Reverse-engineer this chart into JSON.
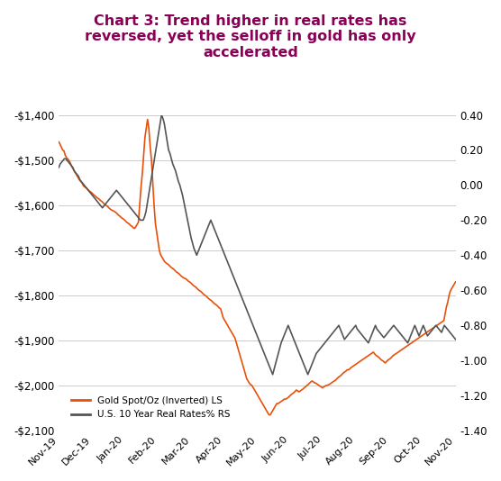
{
  "title": "Chart 3: Trend higher in real rates has\nreversed, yet the selloff in gold has only\naccelerated",
  "title_color": "#8B0057",
  "title_fontsize": 11.5,
  "gold_color": "#E8500A",
  "rates_color": "#555555",
  "background_color": "#ffffff",
  "grid_color": "#cccccc",
  "left_ylim": [
    -2100,
    -1400
  ],
  "left_yticks": [
    -2100,
    -2000,
    -1900,
    -1800,
    -1700,
    -1600,
    -1500,
    -1400
  ],
  "left_yticklabels": [
    "-$2,100",
    "-$2,000",
    "-$1,900",
    "-$1,800",
    "-$1,700",
    "-$1,600",
    "-$1,500",
    "-$1,400"
  ],
  "right_ylim": [
    -1.4,
    0.4
  ],
  "right_yticks": [
    -1.4,
    -1.2,
    -1.0,
    -0.8,
    -0.6,
    -0.4,
    -0.2,
    0.0,
    0.2,
    0.4
  ],
  "right_yticklabels": [
    "-1.40",
    "-1.20",
    "-1.00",
    "-0.80",
    "-0.60",
    "-0.40",
    "-0.20",
    "0.00",
    "0.20",
    "0.40"
  ],
  "xtick_labels": [
    "Nov-19",
    "Dec-19",
    "Jan-20",
    "Feb-20",
    "Mar-20",
    "Apr-20",
    "May-20",
    "Jun-20",
    "Jul-20",
    "Aug-20",
    "Sep-20",
    "Oct-20",
    "Nov-20"
  ],
  "legend_gold": "Gold Spot/Oz (Inverted) LS",
  "legend_rates": "U.S. 10 Year Real Rates% RS",
  "gold_data": [
    -1460,
    -1465,
    -1472,
    -1478,
    -1480,
    -1490,
    -1495,
    -1498,
    -1502,
    -1508,
    -1515,
    -1520,
    -1525,
    -1530,
    -1535,
    -1540,
    -1545,
    -1548,
    -1552,
    -1558,
    -1560,
    -1562,
    -1565,
    -1568,
    -1570,
    -1572,
    -1575,
    -1578,
    -1580,
    -1583,
    -1585,
    -1587,
    -1590,
    -1592,
    -1595,
    -1598,
    -1600,
    -1602,
    -1605,
    -1608,
    -1610,
    -1612,
    -1613,
    -1615,
    -1617,
    -1620,
    -1623,
    -1625,
    -1628,
    -1630,
    -1632,
    -1635,
    -1638,
    -1640,
    -1642,
    -1645,
    -1647,
    -1650,
    -1652,
    -1648,
    -1643,
    -1638,
    -1600,
    -1560,
    -1530,
    -1490,
    -1450,
    -1430,
    -1410,
    -1430,
    -1470,
    -1500,
    -1550,
    -1600,
    -1640,
    -1660,
    -1680,
    -1700,
    -1710,
    -1715,
    -1720,
    -1725,
    -1728,
    -1730,
    -1732,
    -1735,
    -1738,
    -1740,
    -1742,
    -1745,
    -1748,
    -1750,
    -1752,
    -1755,
    -1758,
    -1760,
    -1762,
    -1763,
    -1765,
    -1768,
    -1770,
    -1772,
    -1775,
    -1778,
    -1780,
    -1782,
    -1785,
    -1788,
    -1790,
    -1792,
    -1795,
    -1798,
    -1800,
    -1802,
    -1805,
    -1808,
    -1810,
    -1812,
    -1815,
    -1818,
    -1820,
    -1822,
    -1825,
    -1828,
    -1830,
    -1840,
    -1850,
    -1855,
    -1860,
    -1865,
    -1870,
    -1875,
    -1880,
    -1885,
    -1890,
    -1895,
    -1905,
    -1915,
    -1925,
    -1935,
    -1945,
    -1955,
    -1965,
    -1975,
    -1985,
    -1990,
    -1995,
    -1998,
    -2000,
    -2005,
    -2010,
    -2015,
    -2020,
    -2025,
    -2030,
    -2035,
    -2040,
    -2045,
    -2050,
    -2055,
    -2060,
    -2065,
    -2065,
    -2060,
    -2055,
    -2050,
    -2045,
    -2040,
    -2040,
    -2038,
    -2036,
    -2034,
    -2032,
    -2030,
    -2030,
    -2028,
    -2026,
    -2023,
    -2020,
    -2018,
    -2016,
    -2013,
    -2010,
    -2012,
    -2014,
    -2012,
    -2010,
    -2008,
    -2005,
    -2003,
    -2000,
    -1998,
    -1995,
    -1992,
    -1990,
    -1992,
    -1994,
    -1995,
    -1997,
    -1999,
    -2001,
    -2003,
    -2005,
    -2003,
    -2001,
    -2000,
    -1999,
    -1998,
    -1996,
    -1994,
    -1992,
    -1990,
    -1988,
    -1985,
    -1982,
    -1980,
    -1978,
    -1975,
    -1972,
    -1970,
    -1968,
    -1965,
    -1965,
    -1963,
    -1960,
    -1958,
    -1956,
    -1954,
    -1952,
    -1950,
    -1948,
    -1946,
    -1944,
    -1942,
    -1940,
    -1938,
    -1936,
    -1934,
    -1932,
    -1930,
    -1928,
    -1926,
    -1930,
    -1933,
    -1935,
    -1937,
    -1940,
    -1943,
    -1945,
    -1947,
    -1950,
    -1947,
    -1944,
    -1942,
    -1940,
    -1937,
    -1934,
    -1932,
    -1930,
    -1928,
    -1926,
    -1924,
    -1922,
    -1920,
    -1918,
    -1916,
    -1914,
    -1912,
    -1910,
    -1908,
    -1906,
    -1904,
    -1902,
    -1900,
    -1898,
    -1896,
    -1894,
    -1892,
    -1890,
    -1888,
    -1886,
    -1884,
    -1882,
    -1880,
    -1878,
    -1876,
    -1874,
    -1872,
    -1870,
    -1868,
    -1866,
    -1864,
    -1862,
    -1860,
    -1858,
    -1856,
    -1840,
    -1825,
    -1815,
    -1800,
    -1790,
    -1785,
    -1780,
    -1775,
    -1770
  ],
  "rates_data": [
    0.1,
    0.12,
    0.13,
    0.14,
    0.15,
    0.15,
    0.14,
    0.13,
    0.12,
    0.11,
    0.1,
    0.08,
    0.07,
    0.06,
    0.05,
    0.03,
    0.02,
    0.01,
    0.0,
    -0.01,
    -0.02,
    -0.03,
    -0.04,
    -0.05,
    -0.06,
    -0.07,
    -0.08,
    -0.09,
    -0.1,
    -0.11,
    -0.12,
    -0.13,
    -0.12,
    -0.11,
    -0.1,
    -0.09,
    -0.08,
    -0.07,
    -0.06,
    -0.05,
    -0.04,
    -0.03,
    -0.04,
    -0.05,
    -0.06,
    -0.07,
    -0.08,
    -0.09,
    -0.1,
    -0.11,
    -0.12,
    -0.13,
    -0.14,
    -0.15,
    -0.16,
    -0.17,
    -0.18,
    -0.19,
    -0.2,
    -0.2,
    -0.2,
    -0.18,
    -0.15,
    -0.1,
    -0.05,
    0.0,
    0.05,
    0.1,
    0.15,
    0.2,
    0.25,
    0.3,
    0.35,
    0.4,
    0.38,
    0.35,
    0.3,
    0.25,
    0.2,
    0.18,
    0.15,
    0.12,
    0.1,
    0.08,
    0.05,
    0.02,
    0.0,
    -0.03,
    -0.06,
    -0.1,
    -0.14,
    -0.18,
    -0.22,
    -0.26,
    -0.3,
    -0.33,
    -0.36,
    -0.38,
    -0.4,
    -0.38,
    -0.36,
    -0.34,
    -0.32,
    -0.3,
    -0.28,
    -0.26,
    -0.24,
    -0.22,
    -0.2,
    -0.22,
    -0.24,
    -0.26,
    -0.28,
    -0.3,
    -0.32,
    -0.34,
    -0.36,
    -0.38,
    -0.4,
    -0.42,
    -0.44,
    -0.46,
    -0.48,
    -0.5,
    -0.52,
    -0.54,
    -0.56,
    -0.58,
    -0.6,
    -0.62,
    -0.64,
    -0.66,
    -0.68,
    -0.7,
    -0.72,
    -0.74,
    -0.76,
    -0.78,
    -0.8,
    -0.82,
    -0.84,
    -0.86,
    -0.88,
    -0.9,
    -0.92,
    -0.94,
    -0.96,
    -0.98,
    -1.0,
    -1.02,
    -1.04,
    -1.06,
    -1.08,
    -1.05,
    -1.02,
    -0.99,
    -0.96,
    -0.93,
    -0.9,
    -0.88,
    -0.86,
    -0.84,
    -0.82,
    -0.8,
    -0.82,
    -0.84,
    -0.86,
    -0.88,
    -0.9,
    -0.92,
    -0.94,
    -0.96,
    -0.98,
    -1.0,
    -1.02,
    -1.04,
    -1.06,
    -1.08,
    -1.06,
    -1.04,
    -1.02,
    -1.0,
    -0.98,
    -0.96,
    -0.95,
    -0.94,
    -0.93,
    -0.92,
    -0.91,
    -0.9,
    -0.89,
    -0.88,
    -0.87,
    -0.86,
    -0.85,
    -0.84,
    -0.83,
    -0.82,
    -0.81,
    -0.8,
    -0.82,
    -0.84,
    -0.86,
    -0.88,
    -0.87,
    -0.86,
    -0.85,
    -0.84,
    -0.83,
    -0.82,
    -0.81,
    -0.8,
    -0.82,
    -0.83,
    -0.84,
    -0.85,
    -0.86,
    -0.87,
    -0.88,
    -0.89,
    -0.9,
    -0.88,
    -0.86,
    -0.84,
    -0.82,
    -0.8,
    -0.82,
    -0.83,
    -0.84,
    -0.85,
    -0.86,
    -0.87,
    -0.86,
    -0.85,
    -0.84,
    -0.83,
    -0.82,
    -0.81,
    -0.8,
    -0.81,
    -0.82,
    -0.83,
    -0.84,
    -0.85,
    -0.86,
    -0.87,
    -0.88,
    -0.89,
    -0.9,
    -0.88,
    -0.86,
    -0.84,
    -0.82,
    -0.8,
    -0.82,
    -0.84,
    -0.86,
    -0.84,
    -0.82,
    -0.8,
    -0.82,
    -0.84,
    -0.86,
    -0.85,
    -0.84,
    -0.83,
    -0.82,
    -0.81,
    -0.8,
    -0.81,
    -0.82,
    -0.83,
    -0.84,
    -0.82,
    -0.8,
    -0.81,
    -0.82,
    -0.83,
    -0.84,
    -0.85,
    -0.86,
    -0.87,
    -0.88
  ]
}
